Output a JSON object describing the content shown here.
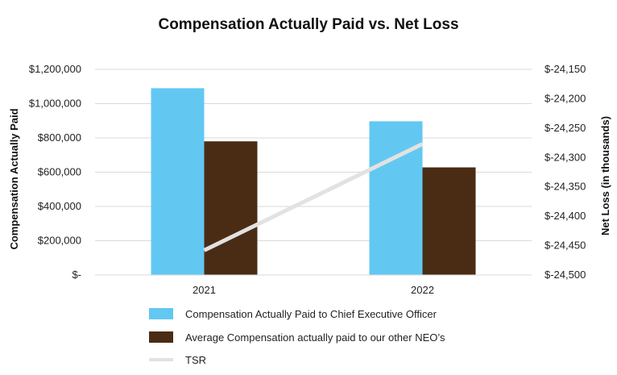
{
  "chart_data": {
    "type": "bar",
    "title": "Compensation Actually Paid vs. Net Loss",
    "categories": [
      "2021",
      "2022"
    ],
    "ylabel": "Compensation Actually Paid",
    "y2label": "Net Loss (in thousands)",
    "ylim": [
      0,
      1200000
    ],
    "y2lim": [
      -24500,
      -24150
    ],
    "yticks": [
      "$-",
      "$200,000",
      "$400,000",
      "$600,000",
      "$800,000",
      "$1,000,000",
      "$1,200,000"
    ],
    "y2ticks": [
      "$-24,500",
      "$-24,450",
      "$-24,400",
      "$-24,350",
      "$-24,300",
      "$-24,250",
      "$-24,200",
      "$-24,150"
    ],
    "series": [
      {
        "name": "Compensation Actually Paid to Chief Executive Officer",
        "kind": "bar",
        "axis": "left",
        "color": "#62c8f2",
        "values": [
          1090000,
          897000
        ]
      },
      {
        "name": "Average Compensation actually paid to our other NEO’s",
        "kind": "bar",
        "axis": "left",
        "color": "#4a2c14",
        "values": [
          780000,
          628000
        ]
      },
      {
        "name": "TSR",
        "kind": "line",
        "axis": "right",
        "color": "#e2e2e2",
        "values": [
          -24458,
          -24277
        ]
      }
    ]
  }
}
